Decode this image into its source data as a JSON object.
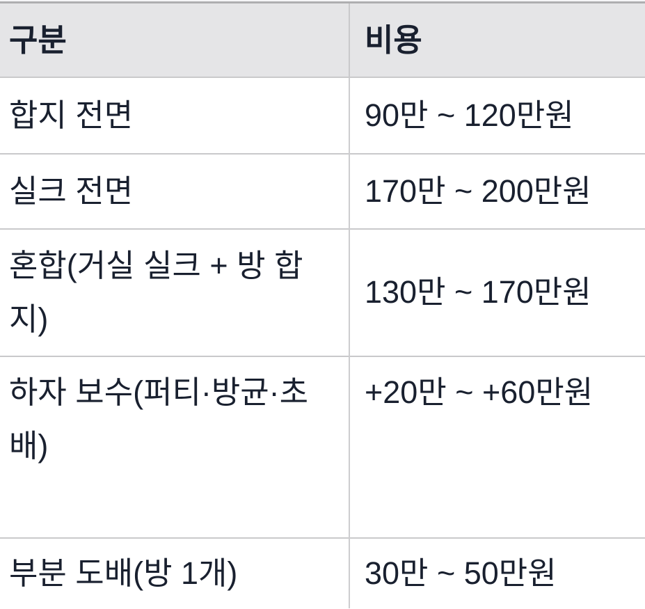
{
  "table": {
    "headers": {
      "category": "구분",
      "cost": "비용"
    },
    "rows": [
      {
        "category": "합지 전면",
        "cost": "90만 ~ 120만원"
      },
      {
        "category": "실크 전면",
        "cost": "170만 ~ 200만원"
      },
      {
        "category": "혼합(거실 실크 + 방 합지)",
        "cost": "130만 ~ 170만원"
      },
      {
        "category": "하자 보수(퍼티·방균·초배)",
        "cost": "+20만 ~ +60만원"
      },
      {
        "category": "부분 도배(방 1개)",
        "cost": "30만 ~ 50만원"
      }
    ]
  },
  "colors": {
    "background": "#ffffff",
    "header_bg": "#e5e5e7",
    "text": "#19202f",
    "top_border": "#aeaeb0",
    "row_border": "#c9c9cb",
    "column_divider": "#cdcdcf"
  },
  "chart_data": {
    "type": "table",
    "columns": [
      "구분",
      "비용"
    ],
    "rows": [
      [
        "합지 전면",
        "90만 ~ 120만원"
      ],
      [
        "실크 전면",
        "170만 ~ 200만원"
      ],
      [
        "혼합(거실 실크 + 방 합지)",
        "130만 ~ 170만원"
      ],
      [
        "하자 보수(퍼티·방균·초배)",
        "+20만 ~ +60만원"
      ],
      [
        "부분 도배(방 1개)",
        "30만 ~ 50만원"
      ]
    ]
  }
}
